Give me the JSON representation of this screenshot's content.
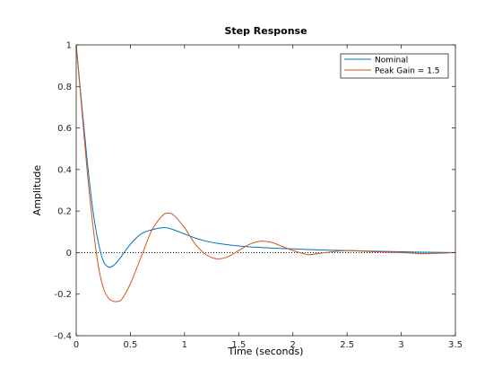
{
  "chart_data": {
    "type": "line",
    "title": "Step Response",
    "xlabel": "Time (seconds)",
    "ylabel": "Amplitude",
    "xlim": [
      0,
      3.5
    ],
    "ylim": [
      -0.4,
      1
    ],
    "xticks": [
      0,
      0.5,
      1,
      1.5,
      2,
      2.5,
      3,
      3.5
    ],
    "xtick_labels": [
      "0",
      "0.5",
      "1",
      "1.5",
      "2",
      "2.5",
      "3",
      "3.5"
    ],
    "yticks": [
      -0.4,
      -0.2,
      0,
      0.2,
      0.4,
      0.6,
      0.8,
      1
    ],
    "ytick_labels": [
      "-0.4",
      "-0.2",
      "0",
      "0.2",
      "0.4",
      "0.6",
      "0.8",
      "1"
    ],
    "grid": false,
    "legend": "top-right",
    "zero_line": "dotted",
    "series": [
      {
        "name": "Nominal",
        "color": "#0072BD",
        "x": [
          0,
          0.05,
          0.1,
          0.15,
          0.2,
          0.25,
          0.3,
          0.35,
          0.4,
          0.5,
          0.6,
          0.7,
          0.8,
          0.85,
          0.9,
          1.0,
          1.1,
          1.2,
          1.3,
          1.4,
          1.5,
          1.6,
          1.7,
          1.8,
          2.0,
          2.2,
          2.4,
          2.6,
          2.8,
          3.0,
          3.2,
          3.5
        ],
        "y": [
          1.0,
          0.72,
          0.45,
          0.22,
          0.06,
          -0.04,
          -0.07,
          -0.06,
          -0.03,
          0.04,
          0.09,
          0.11,
          0.12,
          0.118,
          0.11,
          0.09,
          0.07,
          0.055,
          0.045,
          0.038,
          0.032,
          0.028,
          0.025,
          0.022,
          0.018,
          0.014,
          0.011,
          0.009,
          0.006,
          0.004,
          0.002,
          0.0
        ]
      },
      {
        "name": "Peak Gain = 1.5",
        "color": "#D95319",
        "x": [
          0,
          0.05,
          0.1,
          0.15,
          0.2,
          0.25,
          0.3,
          0.35,
          0.38,
          0.42,
          0.5,
          0.6,
          0.7,
          0.8,
          0.85,
          0.9,
          1.0,
          1.1,
          1.2,
          1.3,
          1.4,
          1.5,
          1.6,
          1.7,
          1.8,
          1.9,
          2.0,
          2.1,
          2.15,
          2.3,
          2.5,
          2.7,
          3.0,
          3.2,
          3.5
        ],
        "y": [
          1.0,
          0.7,
          0.4,
          0.15,
          -0.05,
          -0.17,
          -0.22,
          -0.235,
          -0.235,
          -0.225,
          -0.15,
          -0.02,
          0.11,
          0.18,
          0.19,
          0.18,
          0.12,
          0.04,
          -0.01,
          -0.03,
          -0.02,
          0.01,
          0.04,
          0.055,
          0.05,
          0.03,
          0.01,
          -0.005,
          -0.01,
          0.0,
          0.01,
          0.005,
          0.0,
          -0.005,
          0.0
        ]
      }
    ]
  }
}
